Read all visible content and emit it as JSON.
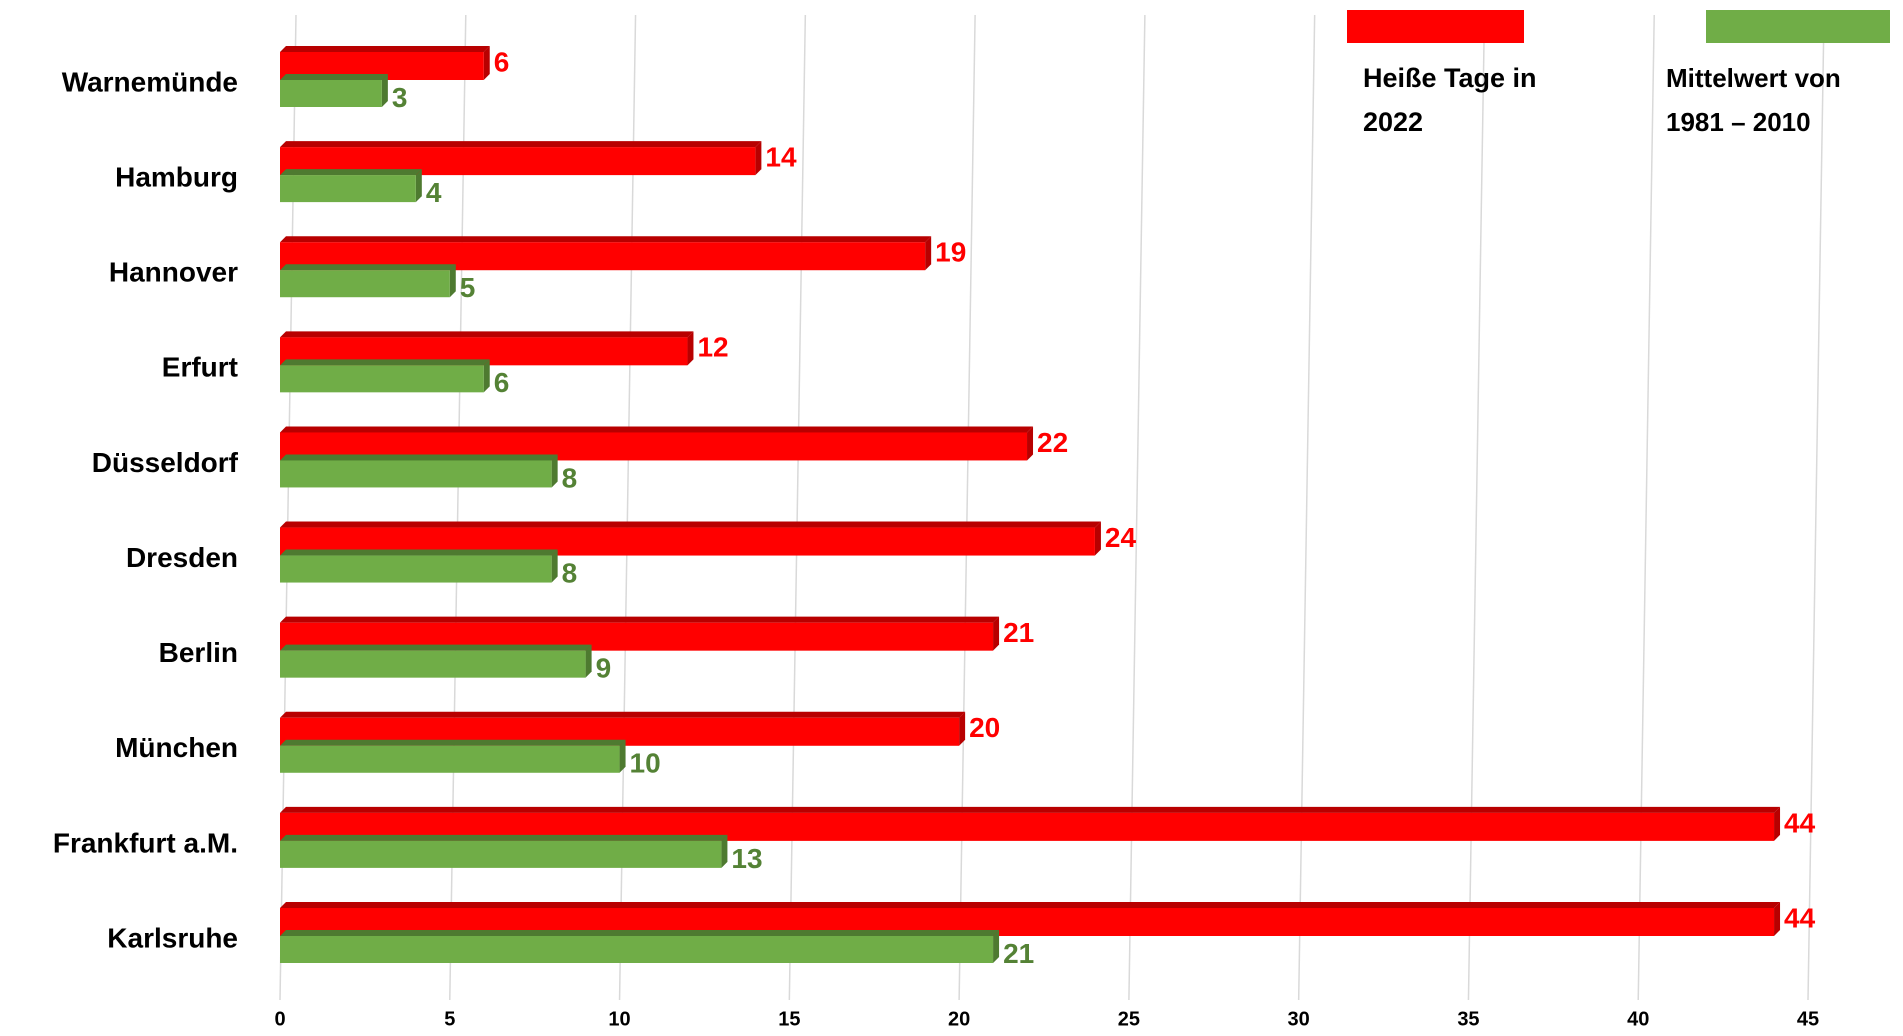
{
  "chart_data": {
    "type": "bar",
    "orientation": "horizontal",
    "categories": [
      "Warnemünde",
      "Hamburg",
      "Hannover",
      "Erfurt",
      "Düsseldorf",
      "Dresden",
      "Berlin",
      "München",
      "Frankfurt a.M.",
      "Karlsruhe"
    ],
    "series": [
      {
        "name": "Heiße Tage in 2022",
        "color": "#ff0000",
        "values": [
          6,
          14,
          19,
          12,
          22,
          24,
          21,
          20,
          44,
          44
        ]
      },
      {
        "name": "Mittelwert von 1981 – 2010",
        "color": "#70ad47",
        "values": [
          3,
          4,
          5,
          6,
          8,
          8,
          9,
          10,
          13,
          21
        ]
      }
    ],
    "xlim": [
      0,
      45
    ],
    "xticks": [
      0,
      5,
      10,
      15,
      20,
      25,
      30,
      35,
      40,
      45
    ],
    "grid": true
  }
}
